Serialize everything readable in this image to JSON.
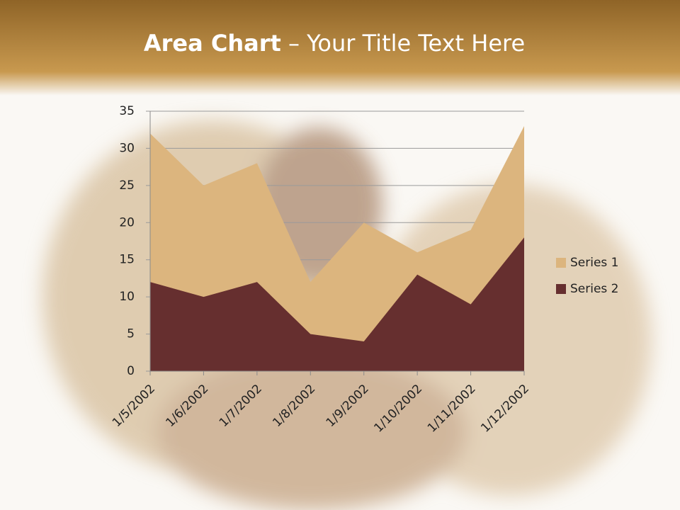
{
  "slide": {
    "title_bold": "Area Chart",
    "title_text": "– Your Title Text Here"
  },
  "chart_data": {
    "type": "area",
    "categories": [
      "1/5/2002",
      "1/6/2002",
      "1/7/2002",
      "1/8/2002",
      "1/9/2002",
      "1/10/2002",
      "1/11/2002",
      "1/12/2002"
    ],
    "series": [
      {
        "name": "Series 1",
        "color": "#dcb57e",
        "values": [
          32,
          25,
          28,
          12,
          20,
          16,
          19,
          33
        ]
      },
      {
        "name": "Series 2",
        "color": "#662f2f",
        "values": [
          12,
          10,
          12,
          5,
          4,
          13,
          9,
          18
        ]
      }
    ],
    "ylim": [
      0,
      35
    ],
    "yticks": [
      0,
      5,
      10,
      15,
      20,
      25,
      30,
      35
    ],
    "grid": true,
    "legend": "right"
  }
}
